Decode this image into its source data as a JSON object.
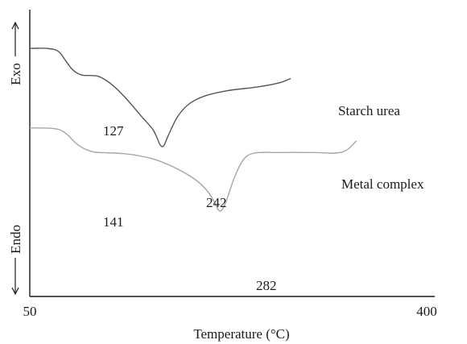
{
  "chart_data": {
    "type": "line",
    "title": "",
    "xlabel": "Temperature (°C)",
    "ylabel_top": "Exo",
    "ylabel_bottom": "Endo",
    "x_ticks": [
      "50",
      "400"
    ],
    "xlim": [
      50,
      400
    ],
    "grid": false,
    "legend": "none (series labeled on chart)",
    "series": [
      {
        "name": "Starch urea",
        "color": "#555555",
        "points": [
          [
            50,
            0.865
          ],
          [
            65,
            0.865
          ],
          [
            75,
            0.855
          ],
          [
            82,
            0.82
          ],
          [
            88,
            0.79
          ],
          [
            96,
            0.772
          ],
          [
            110,
            0.768
          ],
          [
            122,
            0.74
          ],
          [
            135,
            0.69
          ],
          [
            148,
            0.63
          ],
          [
            158,
            0.585
          ],
          [
            162,
            0.555
          ],
          [
            165,
            0.528
          ],
          [
            168,
            0.525
          ],
          [
            172,
            0.56
          ],
          [
            180,
            0.625
          ],
          [
            190,
            0.67
          ],
          [
            205,
            0.7
          ],
          [
            225,
            0.718
          ],
          [
            250,
            0.73
          ],
          [
            270,
            0.745
          ],
          [
            280,
            0.76
          ]
        ]
      },
      {
        "name": "Metal complex",
        "color": "#a6a6a6",
        "points": [
          [
            50,
            0.588
          ],
          [
            72,
            0.585
          ],
          [
            82,
            0.568
          ],
          [
            92,
            0.53
          ],
          [
            105,
            0.505
          ],
          [
            125,
            0.5
          ],
          [
            140,
            0.495
          ],
          [
            160,
            0.478
          ],
          [
            180,
            0.445
          ],
          [
            195,
            0.41
          ],
          [
            205,
            0.375
          ],
          [
            212,
            0.335
          ],
          [
            216,
            0.303
          ],
          [
            219,
            0.3
          ],
          [
            223,
            0.33
          ],
          [
            230,
            0.41
          ],
          [
            238,
            0.475
          ],
          [
            248,
            0.5
          ],
          [
            270,
            0.502
          ],
          [
            300,
            0.502
          ],
          [
            320,
            0.5
          ],
          [
            330,
            0.512
          ],
          [
            338,
            0.543
          ]
        ]
      }
    ],
    "annotations": [
      {
        "text": "127",
        "series": "Starch urea",
        "x": 88,
        "y": 0.79
      },
      {
        "text": "242",
        "series": "Starch urea",
        "x": 168,
        "y": 0.525
      },
      {
        "text": "141",
        "series": "Metal complex",
        "x": 92,
        "y": 0.53
      },
      {
        "text": "282",
        "series": "Metal complex",
        "x": 219,
        "y": 0.3
      }
    ]
  }
}
